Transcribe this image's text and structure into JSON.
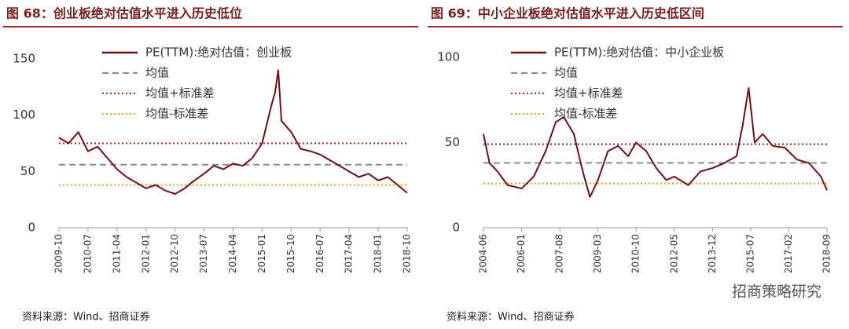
{
  "chart_data": [
    {
      "type": "line",
      "title": "图 68：创业板绝对估值水平进入历史低位",
      "x": [
        "2009-10",
        "2010-01",
        "2010-04",
        "2010-07",
        "2010-10",
        "2011-01",
        "2011-04",
        "2011-07",
        "2011-10",
        "2012-01",
        "2012-04",
        "2012-07",
        "2012-10",
        "2013-01",
        "2013-04",
        "2013-07",
        "2013-10",
        "2014-01",
        "2014-04",
        "2014-07",
        "2014-10",
        "2015-01",
        "2015-04",
        "2015-05",
        "2015-06",
        "2015-07",
        "2015-10",
        "2016-01",
        "2016-04",
        "2016-07",
        "2016-10",
        "2017-01",
        "2017-04",
        "2017-07",
        "2017-10",
        "2018-01",
        "2018-04",
        "2018-07",
        "2018-10"
      ],
      "series": [
        {
          "name": "PE(TTM):绝对估值：创业板",
          "color": "#6e1214",
          "values": [
            80,
            75,
            85,
            68,
            72,
            62,
            52,
            45,
            40,
            35,
            38,
            33,
            30,
            35,
            42,
            48,
            55,
            52,
            57,
            55,
            62,
            75,
            110,
            120,
            140,
            95,
            85,
            70,
            68,
            65,
            60,
            55,
            50,
            45,
            48,
            42,
            45,
            38,
            31
          ]
        }
      ],
      "reference_lines": [
        {
          "name": "均值",
          "value": 56,
          "color": "#8c8c8c",
          "style": "dashed"
        },
        {
          "name": "均值+标准差",
          "value": 75,
          "color": "#a02828",
          "style": "dotted"
        },
        {
          "name": "均值-标准差",
          "value": 38,
          "color": "#e0a428",
          "style": "dotted"
        }
      ],
      "ylim": [
        0,
        150
      ],
      "yticks": [
        0,
        50,
        100,
        150
      ],
      "xticks": [
        "2009-10",
        "2010-07",
        "2011-04",
        "2012-01",
        "2012-10",
        "2013-07",
        "2014-04",
        "2015-01",
        "2015-10",
        "2016-07",
        "2017-04",
        "2018-01",
        "2018-10"
      ],
      "source": "资料来源：Wind、招商证券"
    },
    {
      "type": "line",
      "title": "图 69：中小企业板绝对估值水平进入历史低区间",
      "x": [
        "2004-06",
        "2004-09",
        "2005-01",
        "2005-06",
        "2006-01",
        "2006-07",
        "2007-01",
        "2007-06",
        "2007-10",
        "2008-03",
        "2008-07",
        "2008-11",
        "2009-03",
        "2009-08",
        "2010-01",
        "2010-06",
        "2010-10",
        "2011-03",
        "2011-08",
        "2012-01",
        "2012-05",
        "2012-12",
        "2013-06",
        "2013-12",
        "2014-06",
        "2014-12",
        "2015-03",
        "2015-06",
        "2015-09",
        "2016-01",
        "2016-06",
        "2016-12",
        "2017-06",
        "2017-12",
        "2018-06",
        "2018-09"
      ],
      "series": [
        {
          "name": "PE(TTM):绝对估值：中小企业板",
          "color": "#6e1214",
          "values": [
            55,
            38,
            33,
            25,
            23,
            30,
            45,
            62,
            65,
            55,
            35,
            18,
            28,
            45,
            48,
            42,
            50,
            45,
            35,
            28,
            30,
            25,
            33,
            35,
            38,
            42,
            60,
            82,
            50,
            55,
            48,
            47,
            40,
            38,
            30,
            22
          ]
        }
      ],
      "reference_lines": [
        {
          "name": "均值",
          "value": 38,
          "color": "#8c8c8c",
          "style": "dashed"
        },
        {
          "name": "均值+标准差",
          "value": 49,
          "color": "#a02828",
          "style": "dotted"
        },
        {
          "name": "均值-标准差",
          "value": 26,
          "color": "#e0a428",
          "style": "dotted"
        }
      ],
      "ylim": [
        0,
        100
      ],
      "yticks": [
        0,
        50,
        100
      ],
      "xticks": [
        "2004-06",
        "2006-01",
        "2007-08",
        "2009-03",
        "2010-10",
        "2012-05",
        "2013-12",
        "2015-07",
        "2017-02",
        "2018-09"
      ],
      "source": "资料来源：Wind、招商证券"
    }
  ],
  "watermark": "招商策略研究"
}
